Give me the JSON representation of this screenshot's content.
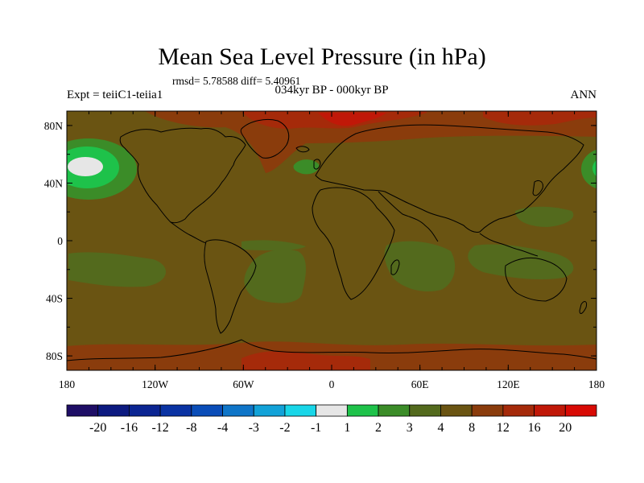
{
  "figure": {
    "title": "Mean Sea Level Pressure (in hPa)",
    "stats": "rmsd= 5.78588 diff= 5.40961",
    "experiment": "Expt = teiiC1-teiia1",
    "period": "034kyr BP - 000kyr BP",
    "season": "ANN"
  },
  "axes": {
    "lat_ticks": [
      "80N",
      "40N",
      "0",
      "40S",
      "80S"
    ],
    "lat_values": [
      80,
      40,
      0,
      -40,
      -80
    ],
    "lon_ticks": [
      "180",
      "120W",
      "60W",
      "0",
      "60E",
      "120E",
      "180"
    ],
    "lon_values": [
      -180,
      -120,
      -60,
      0,
      60,
      120,
      180
    ]
  },
  "colorbar": {
    "labels": [
      "-20",
      "-16",
      "-12",
      "-8",
      "-4",
      "-3",
      "-2",
      "-1",
      "1",
      "2",
      "3",
      "4",
      "8",
      "12",
      "16",
      "20"
    ],
    "colors": [
      "#1e0e66",
      "#0c1a80",
      "#0b2592",
      "#0a33a3",
      "#0a4db8",
      "#0f75c8",
      "#12a2d8",
      "#19d6e8",
      "#e6e6e6",
      "#1ec24a",
      "#3b8c28",
      "#536a1d",
      "#6a5412",
      "#8a3c0c",
      "#a52a0a",
      "#c01808",
      "#d80a04"
    ]
  },
  "map_colors": {
    "background": "#6a5412",
    "positive_high": "#8a3c0c",
    "positive_very_high": "#a52a0a",
    "positive_extreme": "#c01808",
    "near_zero": "#536a1d",
    "weak_negative": "#3b8c28",
    "negative": "#1ec24a",
    "center": "#e6e6e6",
    "coastline": "#000000"
  }
}
